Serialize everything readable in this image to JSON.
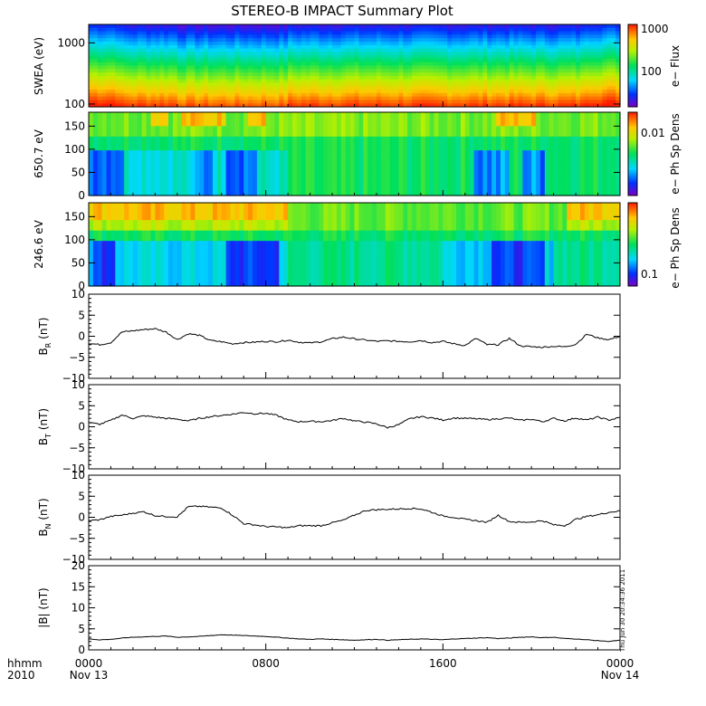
{
  "chart_data": {
    "title": "STEREO-B IMPACT Summary Plot",
    "type": "multi-panel time series",
    "x_axis": {
      "range_hours": [
        0,
        24
      ],
      "tick_hours": [
        0,
        8,
        16,
        24
      ],
      "tick_labels": [
        "0000",
        "0800",
        "1600",
        "0000"
      ],
      "date_labels": [
        "Nov 13",
        "",
        "",
        "Nov 14"
      ],
      "row_label_1": "hhmm",
      "row_label_2": "2010"
    },
    "timestamp": "Thu Jun 30 20:34:36 2011",
    "colormap": "rainbow (violet-blue-cyan-green-yellow-red)",
    "spectrograms": [
      {
        "id": "swea",
        "ylabel": "SWEA (eV)",
        "yscale": "log",
        "yrange": [
          90,
          2000
        ],
        "ytick_labels": [
          "1000",
          "100"
        ],
        "colorbar_label": "e− Flux",
        "colorbar_ticks": [
          "1000",
          "100"
        ],
        "note": "flux highest (red) at low energies near 100 eV, lowest (blue/violet) near 2000 eV; brighter at start and after 2200"
      },
      {
        "id": "pad650",
        "ylabel": "650.7 eV",
        "yrange": [
          0,
          180
        ],
        "ytick_labels": [
          "150",
          "100",
          "50",
          "0"
        ],
        "colorbar_label": "e− Ph Sp Dens",
        "colorbar_ticks": [
          "0.01"
        ],
        "note": "mostly green/cyan; red-yellow strahl near 180 deg at 0300-0600 and 1830-2000; blue depletions below 100 deg around 0000-0200, 0500-0700, 1800-2100"
      },
      {
        "id": "pad246",
        "ylabel": "246.6 eV",
        "yrange": [
          0,
          180
        ],
        "ytick_labels": [
          "150",
          "100",
          "50",
          "0"
        ],
        "colorbar_label": "e− Ph Sp Dens",
        "colorbar_ticks": [
          "0.1"
        ],
        "note": "orange-red near 150-180 deg for 0000-0900 and 2200-2400; dark blue below 100 deg 0000-0900 and 1800-2200; green/cyan 0900-1700"
      }
    ],
    "line_panels": [
      {
        "id": "br",
        "ylabel_main": "B",
        "ylabel_sub": "R",
        "ylabel_unit": " (nT)",
        "yrange": [
          -10,
          10
        ],
        "ytick_values": [
          10,
          5,
          0,
          -5,
          -10
        ],
        "ytick_labels": [
          "10",
          "5",
          "0",
          "−5",
          "−10"
        ],
        "hours": [
          0,
          0.5,
          1,
          1.5,
          2,
          2.5,
          3,
          3.5,
          4,
          4.5,
          5,
          5.5,
          6,
          6.5,
          7,
          7.5,
          8,
          8.5,
          9,
          9.5,
          10,
          10.5,
          11,
          11.5,
          12,
          12.5,
          13,
          13.5,
          14,
          14.5,
          15,
          15.5,
          16,
          16.5,
          17,
          17.5,
          18,
          18.5,
          19,
          19.5,
          20,
          20.5,
          21,
          21.5,
          22,
          22.5,
          23,
          23.5,
          24
        ],
        "values": [
          -1.7,
          -2.0,
          -1.5,
          1.0,
          1.3,
          1.6,
          1.8,
          1.0,
          -0.8,
          0.6,
          0.2,
          -1.0,
          -1.3,
          -1.8,
          -1.5,
          -1.4,
          -1.2,
          -1.3,
          -0.9,
          -1.4,
          -1.6,
          -1.3,
          -0.6,
          -0.2,
          -0.6,
          -0.9,
          -1.2,
          -1.1,
          -1.2,
          -1.3,
          -1.0,
          -1.5,
          -1.2,
          -1.8,
          -2.2,
          -0.5,
          -2.0,
          -2.0,
          -0.5,
          -2.3,
          -2.5,
          -2.6,
          -2.4,
          -2.5,
          -1.9,
          0.5,
          -0.4,
          -0.8,
          0.0
        ]
      },
      {
        "id": "bt",
        "ylabel_main": "B",
        "ylabel_sub": "T",
        "ylabel_unit": " (nT)",
        "yrange": [
          -10,
          10
        ],
        "ytick_values": [
          10,
          5,
          0,
          -5,
          -10
        ],
        "ytick_labels": [
          "10",
          "5",
          "0",
          "−5",
          "−10"
        ],
        "hours": [
          0,
          0.5,
          1,
          1.5,
          2,
          2.5,
          3,
          3.5,
          4,
          4.5,
          5,
          5.5,
          6,
          6.5,
          7,
          7.5,
          8,
          8.5,
          9,
          9.5,
          10,
          10.5,
          11,
          11.5,
          12,
          12.5,
          13,
          13.5,
          14,
          14.5,
          15,
          15.5,
          16,
          16.5,
          17,
          17.5,
          18,
          18.5,
          19,
          19.5,
          20,
          20.5,
          21,
          21.5,
          22,
          22.5,
          23,
          23.5,
          24
        ],
        "values": [
          1.0,
          0.6,
          1.5,
          2.8,
          2.0,
          2.6,
          2.3,
          2.0,
          1.8,
          1.4,
          2.0,
          2.4,
          2.7,
          3.0,
          3.4,
          3.1,
          3.2,
          2.7,
          1.6,
          1.2,
          1.3,
          1.2,
          1.5,
          2.0,
          1.4,
          1.1,
          0.7,
          -0.2,
          0.5,
          1.9,
          2.4,
          2.1,
          1.6,
          2.1,
          2.0,
          1.9,
          1.7,
          1.9,
          2.1,
          1.5,
          1.8,
          1.2,
          2.0,
          1.4,
          2.1,
          1.6,
          2.3,
          1.6,
          2.2
        ]
      },
      {
        "id": "bn",
        "ylabel_main": "B",
        "ylabel_sub": "N",
        "ylabel_unit": " (nT)",
        "yrange": [
          -10,
          10
        ],
        "ytick_values": [
          10,
          5,
          0,
          -5,
          -10
        ],
        "ytick_labels": [
          "10",
          "5",
          "0",
          "−5",
          "−10"
        ],
        "hours": [
          0,
          0.5,
          1,
          1.5,
          2,
          2.5,
          3,
          3.5,
          4,
          4.5,
          5,
          5.5,
          6,
          6.5,
          7,
          7.5,
          8,
          8.5,
          9,
          9.5,
          10,
          10.5,
          11,
          11.5,
          12,
          12.5,
          13,
          13.5,
          14,
          14.5,
          15,
          15.5,
          16,
          16.5,
          17,
          17.5,
          18,
          18.5,
          19,
          19.5,
          20,
          20.5,
          21,
          21.5,
          22,
          22.5,
          23,
          23.5,
          24
        ],
        "values": [
          -0.8,
          -0.6,
          0.2,
          0.5,
          1.0,
          1.3,
          0.4,
          0.2,
          0.1,
          2.5,
          2.6,
          2.4,
          2.2,
          0.5,
          -1.5,
          -1.8,
          -2.2,
          -2.3,
          -2.5,
          -2.0,
          -2.0,
          -2.0,
          -1.3,
          -0.7,
          0.5,
          1.6,
          1.8,
          1.9,
          2.0,
          2.1,
          2.0,
          1.2,
          0.3,
          0.0,
          -0.5,
          -0.8,
          -1.2,
          0.5,
          -1.0,
          -1.2,
          -1.1,
          -0.8,
          -1.8,
          -2.0,
          -0.5,
          0.2,
          0.6,
          1.2,
          1.5
        ]
      },
      {
        "id": "bmag",
        "ylabel_main": "|B|",
        "ylabel_sub": "",
        "ylabel_unit": " (nT)",
        "yrange": [
          0,
          20
        ],
        "ytick_values": [
          20,
          15,
          10,
          5,
          0
        ],
        "ytick_labels": [
          "20",
          "15",
          "10",
          "5",
          "0"
        ],
        "hours": [
          0,
          0.5,
          1,
          1.5,
          2,
          2.5,
          3,
          3.5,
          4,
          4.5,
          5,
          5.5,
          6,
          6.5,
          7,
          7.5,
          8,
          8.5,
          9,
          9.5,
          10,
          10.5,
          11,
          11.5,
          12,
          12.5,
          13,
          13.5,
          14,
          14.5,
          15,
          15.5,
          16,
          16.5,
          17,
          17.5,
          18,
          18.5,
          19,
          19.5,
          20,
          20.5,
          21,
          21.5,
          22,
          22.5,
          23,
          23.5,
          24
        ],
        "values": [
          2.6,
          2.4,
          2.5,
          2.8,
          3.0,
          3.1,
          3.2,
          3.3,
          3.0,
          3.1,
          3.2,
          3.4,
          3.6,
          3.5,
          3.4,
          3.3,
          3.2,
          3.0,
          2.8,
          2.6,
          2.5,
          2.6,
          2.5,
          2.4,
          2.3,
          2.4,
          2.5,
          2.3,
          2.4,
          2.5,
          2.6,
          2.5,
          2.4,
          2.6,
          2.7,
          2.8,
          2.9,
          2.7,
          2.8,
          3.0,
          3.1,
          2.9,
          3.0,
          2.7,
          2.6,
          2.4,
          2.2,
          2.0,
          2.3
        ]
      }
    ]
  }
}
